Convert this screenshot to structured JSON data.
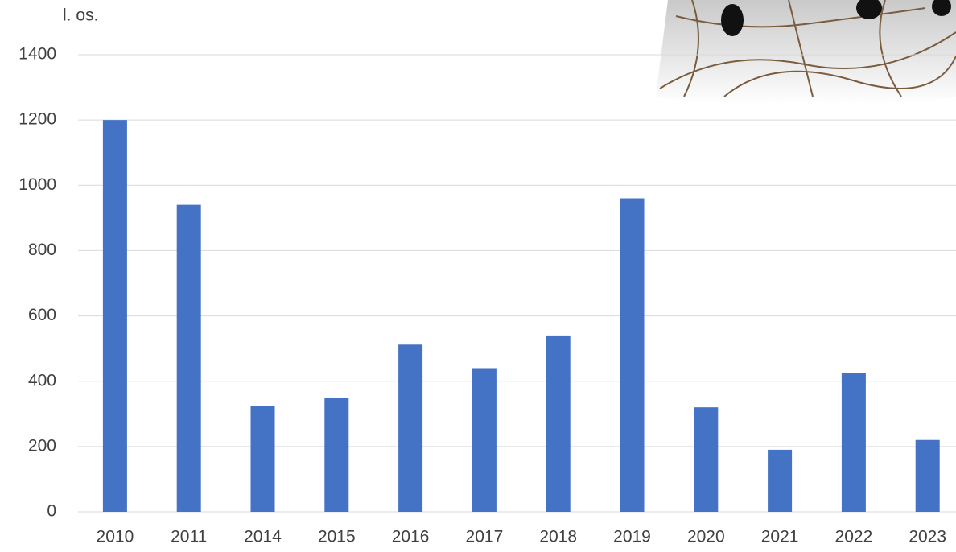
{
  "chart_data": {
    "type": "bar",
    "y_label": "l. os.",
    "categories": [
      "2010",
      "2011",
      "2014",
      "2015",
      "2016",
      "2017",
      "2018",
      "2019",
      "2020",
      "2021",
      "2022",
      "2023"
    ],
    "values": [
      1200,
      940,
      325,
      350,
      512,
      440,
      540,
      960,
      320,
      190,
      425,
      220
    ],
    "color": "#4472c4",
    "ylim": [
      0,
      1400
    ],
    "yticks": [
      0,
      200,
      400,
      600,
      800,
      1000,
      1200,
      1400
    ],
    "grid": true
  }
}
